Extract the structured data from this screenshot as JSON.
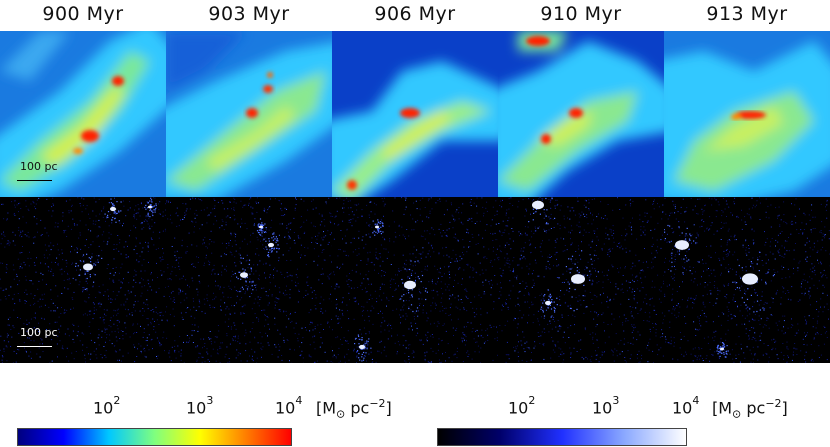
{
  "panels": {
    "times": [
      "900 Myr",
      "903 Myr",
      "906 Myr",
      "910 Myr",
      "913 Myr"
    ]
  },
  "scalebar": {
    "top_label": "100 pc",
    "bottom_label": "100 pc"
  },
  "colorbar_gas": {
    "ticks": [
      {
        "base": "10",
        "exp": "2"
      },
      {
        "base": "10",
        "exp": "3"
      },
      {
        "base": "10",
        "exp": "4"
      }
    ],
    "unit": {
      "open": "[M",
      "sub": "⊙",
      "mid": " pc",
      "sup": "−2",
      "close": "]"
    }
  },
  "colorbar_stars": {
    "ticks": [
      {
        "base": "10",
        "exp": "2"
      },
      {
        "base": "10",
        "exp": "3"
      },
      {
        "base": "10",
        "exp": "4"
      }
    ],
    "unit": {
      "open": "[M",
      "sub": "⊙",
      "mid": " pc",
      "sup": "−2",
      "close": "]"
    }
  },
  "colors": {
    "gas_cmap": [
      "#00007f",
      "#0000ff",
      "#00c8ff",
      "#7fff7f",
      "#ffff00",
      "#ff7f00",
      "#ff0000"
    ],
    "star_cmap": [
      "#000000",
      "#00006a",
      "#2030ff",
      "#8aa8ff",
      "#ffffff"
    ]
  }
}
